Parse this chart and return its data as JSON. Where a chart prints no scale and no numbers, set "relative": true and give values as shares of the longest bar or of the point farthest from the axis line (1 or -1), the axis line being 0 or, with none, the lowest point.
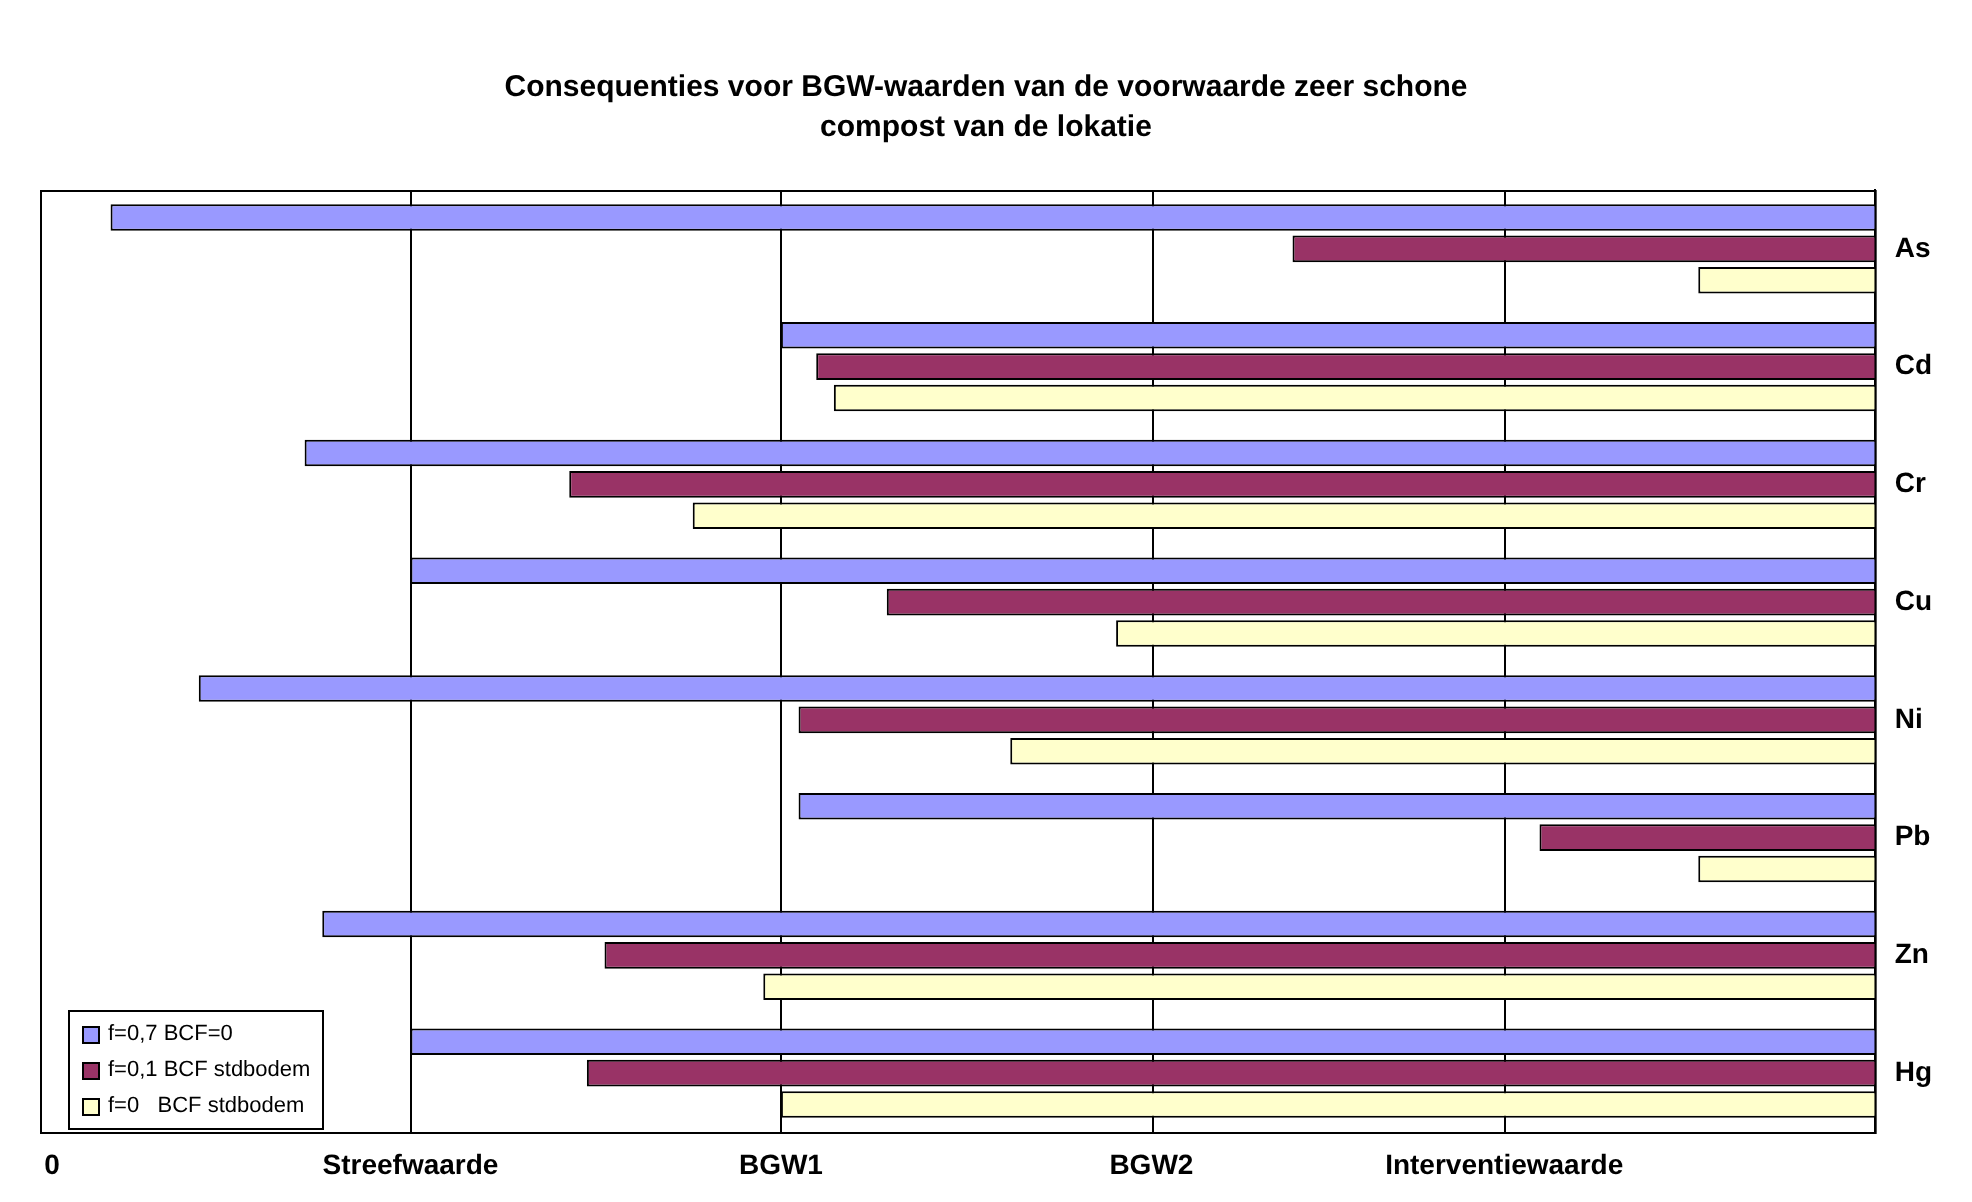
{
  "chart_data": {
    "type": "bar",
    "orientation": "horizontal",
    "relative": true,
    "title": "Consequenties voor BGW-waarden van de voorwaarde zeer schone compost van de lokatie",
    "categories": [
      "As",
      "Cd",
      "Cr",
      "Cu",
      "Ni",
      "Pb",
      "Zn",
      "Hg"
    ],
    "series": [
      {
        "name": "f=0,7 BCF=0",
        "color": "#9999ff",
        "values": [
          -1,
          -0.62,
          -0.89,
          -0.83,
          -0.95,
          -0.61,
          -0.88,
          -0.83
        ]
      },
      {
        "name": "f=0,1 BCF stdbodem",
        "color": "#993366",
        "values": [
          -0.33,
          -0.6,
          -0.74,
          -0.56,
          -0.61,
          -0.19,
          -0.72,
          -0.73
        ]
      },
      {
        "name": "f=0   BCF stdbodem",
        "color": "#ffffcc",
        "values": [
          -0.1,
          -0.59,
          -0.67,
          -0.43,
          -0.49,
          -0.1,
          -0.63,
          -0.62
        ]
      }
    ],
    "ref_lines": [
      {
        "axis": "x",
        "value": -0.83,
        "label": "Streefwaarde"
      },
      {
        "axis": "x",
        "value": -0.62,
        "label": "BGW1"
      },
      {
        "axis": "x",
        "value": -0.41,
        "label": "BGW2"
      },
      {
        "axis": "x",
        "value": -0.21,
        "label": "Interventiewaarde"
      }
    ],
    "annotations": [
      "0"
    ],
    "legend": "bottom left"
  }
}
